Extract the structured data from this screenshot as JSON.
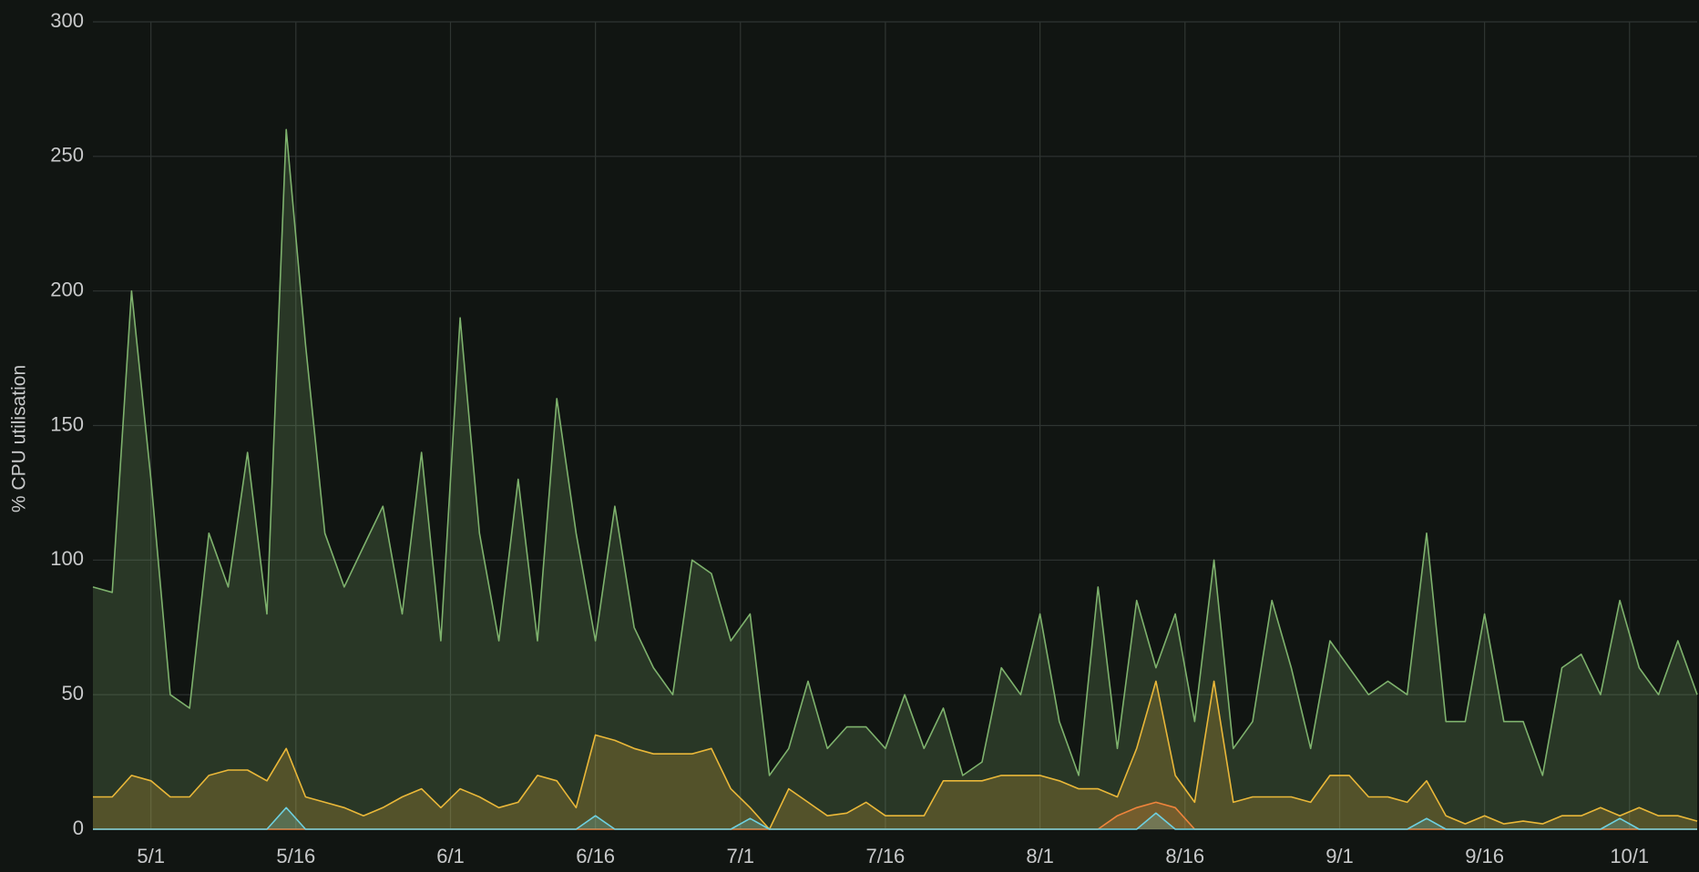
{
  "chart_data": {
    "type": "line",
    "ylabel": "% CPU utilisation",
    "x": [
      "4/25",
      "4/27",
      "4/29",
      "5/1",
      "5/3",
      "5/5",
      "5/7",
      "5/9",
      "5/11",
      "5/13",
      "5/15",
      "5/17",
      "5/19",
      "5/21",
      "5/23",
      "5/25",
      "5/27",
      "5/29",
      "5/31",
      "6/2",
      "6/4",
      "6/6",
      "6/8",
      "6/10",
      "6/12",
      "6/14",
      "6/16",
      "6/18",
      "6/20",
      "6/22",
      "6/24",
      "6/26",
      "6/28",
      "6/30",
      "7/2",
      "7/4",
      "7/6",
      "7/8",
      "7/10",
      "7/12",
      "7/14",
      "7/16",
      "7/18",
      "7/20",
      "7/22",
      "7/24",
      "7/26",
      "7/28",
      "7/30",
      "8/1",
      "8/3",
      "8/5",
      "8/7",
      "8/9",
      "8/11",
      "8/13",
      "8/15",
      "8/17",
      "8/19",
      "8/21",
      "8/23",
      "8/25",
      "8/27",
      "8/29",
      "8/31",
      "9/2",
      "9/4",
      "9/6",
      "9/8",
      "9/10",
      "9/12",
      "9/14",
      "9/16",
      "9/18",
      "9/20",
      "9/22",
      "9/24",
      "9/26",
      "9/28",
      "9/30",
      "10/2",
      "10/4",
      "10/6",
      "10/8"
    ],
    "series": [
      {
        "color": "#7eb26d",
        "values": [
          90,
          88,
          200,
          130,
          50,
          45,
          110,
          90,
          140,
          80,
          260,
          180,
          110,
          90,
          105,
          120,
          80,
          140,
          70,
          190,
          110,
          70,
          130,
          70,
          160,
          110,
          70,
          120,
          75,
          60,
          50,
          100,
          95,
          70,
          80,
          20,
          30,
          55,
          30,
          38,
          38,
          30,
          50,
          30,
          45,
          20,
          25,
          60,
          50,
          80,
          40,
          20,
          90,
          30,
          85,
          60,
          80,
          40,
          100,
          30,
          40,
          85,
          60,
          30,
          70,
          60,
          50,
          55,
          50,
          110,
          40,
          40,
          80,
          40,
          40,
          20,
          60,
          65,
          50,
          85,
          60,
          50,
          70,
          50
        ]
      },
      {
        "color": "#eab839",
        "values": [
          12,
          12,
          20,
          18,
          12,
          12,
          20,
          22,
          22,
          18,
          30,
          12,
          10,
          8,
          5,
          8,
          12,
          15,
          8,
          15,
          12,
          8,
          10,
          20,
          18,
          8,
          35,
          33,
          30,
          28,
          28,
          28,
          30,
          15,
          8,
          0,
          15,
          10,
          5,
          6,
          10,
          5,
          5,
          5,
          18,
          18,
          18,
          20,
          20,
          20,
          18,
          15,
          15,
          12,
          30,
          55,
          20,
          10,
          55,
          10,
          12,
          12,
          12,
          10,
          20,
          20,
          12,
          12,
          10,
          18,
          5,
          2,
          5,
          2,
          3,
          2,
          5,
          5,
          8,
          5,
          8,
          5,
          5,
          3
        ]
      },
      {
        "color": "#ef843c",
        "values": [
          0,
          0,
          0,
          0,
          0,
          0,
          0,
          0,
          0,
          0,
          0,
          0,
          0,
          0,
          0,
          0,
          0,
          0,
          0,
          0,
          0,
          0,
          0,
          0,
          0,
          0,
          0,
          0,
          0,
          0,
          0,
          0,
          0,
          0,
          0,
          0,
          0,
          0,
          0,
          0,
          0,
          0,
          0,
          0,
          0,
          0,
          0,
          0,
          0,
          0,
          0,
          0,
          0,
          5,
          8,
          10,
          8,
          0,
          0,
          0,
          0,
          0,
          0,
          0,
          0,
          0,
          0,
          0,
          0,
          0,
          0,
          0,
          0,
          0,
          0,
          0,
          0,
          0,
          0,
          0,
          0,
          0,
          0,
          0
        ]
      },
      {
        "color": "#6ed0e0",
        "values": [
          0,
          0,
          0,
          0,
          0,
          0,
          0,
          0,
          0,
          0,
          8,
          0,
          0,
          0,
          0,
          0,
          0,
          0,
          0,
          0,
          0,
          0,
          0,
          0,
          0,
          0,
          5,
          0,
          0,
          0,
          0,
          0,
          0,
          0,
          4,
          0,
          0,
          0,
          0,
          0,
          0,
          0,
          0,
          0,
          0,
          0,
          0,
          0,
          0,
          0,
          0,
          0,
          0,
          0,
          0,
          6,
          0,
          0,
          0,
          0,
          0,
          0,
          0,
          0,
          0,
          0,
          0,
          0,
          0,
          4,
          0,
          0,
          0,
          0,
          0,
          0,
          0,
          0,
          0,
          4,
          0,
          0,
          0,
          0
        ]
      }
    ],
    "xlim": [
      "4/25",
      "10/8"
    ],
    "xticks": [
      "5/1",
      "5/16",
      "6/1",
      "6/16",
      "7/1",
      "7/16",
      "8/1",
      "8/16",
      "9/1",
      "9/16",
      "10/1"
    ],
    "ylim": [
      0,
      300
    ],
    "yticks": [
      0,
      50,
      100,
      150,
      200,
      250,
      300
    ],
    "grid": true
  }
}
